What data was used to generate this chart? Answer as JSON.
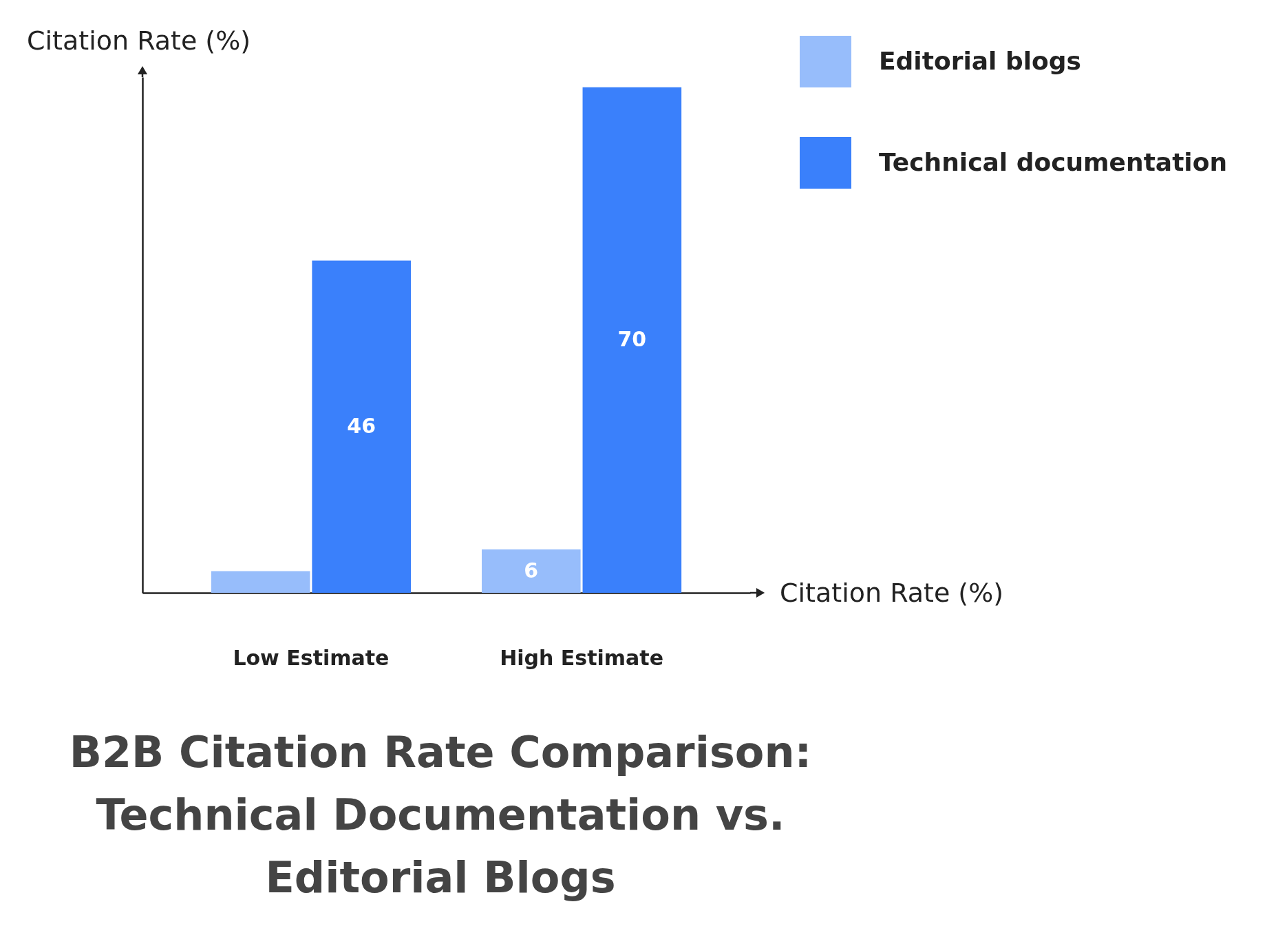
{
  "chart_data": {
    "type": "bar",
    "title": "B2B Citation Rate Comparison: Technical Documentation vs. Editorial Blogs",
    "xlabel": "Citation Rate (%)",
    "ylabel": "Citation Rate (%)",
    "categories": [
      "Low Estimate",
      "High Estimate"
    ],
    "series": [
      {
        "name": "Editorial blogs",
        "color": "#97bdfb",
        "values": [
          3,
          6
        ],
        "value_labels": [
          null,
          "6"
        ]
      },
      {
        "name": "Technical documentation",
        "color": "#3a80fb",
        "values": [
          46,
          70
        ],
        "value_labels": [
          "46",
          "70"
        ]
      }
    ],
    "legend": "top right",
    "tick_labels": "x",
    "grid": false
  }
}
